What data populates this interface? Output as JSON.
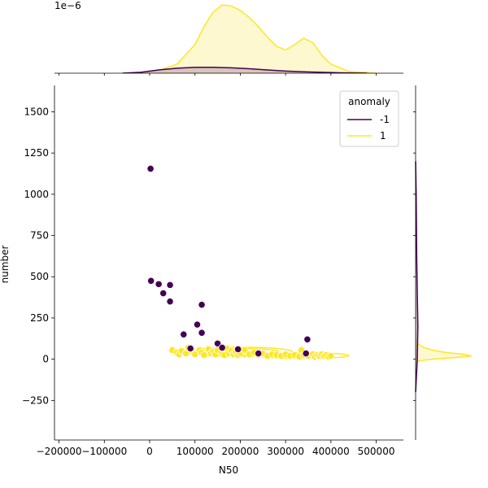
{
  "chart_data": {
    "type": "scatter",
    "subtype": "jointplot",
    "xlabel": "N50",
    "ylabel": "number",
    "offset_text": "1e−6",
    "xlim": [
      -210000,
      560000
    ],
    "ylim": [
      -490,
      1660
    ],
    "xticks": [
      -200000,
      -100000,
      0,
      100000,
      200000,
      300000,
      400000,
      500000
    ],
    "xtick_labels": [
      "−200000",
      "−100000",
      "0",
      "100000",
      "200000",
      "300000",
      "400000",
      "500000"
    ],
    "yticks": [
      -250,
      0,
      250,
      500,
      750,
      1000,
      1250,
      1500
    ],
    "ytick_labels": [
      "−250",
      "0",
      "250",
      "500",
      "750",
      "1000",
      "1250",
      "1500"
    ],
    "legend": {
      "title": "anomaly",
      "placement": "top-right",
      "entries": [
        {
          "label": "-1",
          "color": "#440154"
        },
        {
          "label": "1",
          "color": "#fde725"
        }
      ]
    },
    "series": [
      {
        "name": "-1",
        "color": "#440154",
        "points": [
          [
            2000,
            1155
          ],
          [
            3000,
            475
          ],
          [
            20000,
            455
          ],
          [
            30000,
            400
          ],
          [
            45000,
            450
          ],
          [
            45000,
            350
          ],
          [
            75000,
            150
          ],
          [
            90000,
            65
          ],
          [
            105000,
            210
          ],
          [
            115000,
            330
          ],
          [
            115000,
            160
          ],
          [
            150000,
            95
          ],
          [
            160000,
            70
          ],
          [
            195000,
            60
          ],
          [
            240000,
            35
          ],
          [
            345000,
            35
          ],
          [
            348000,
            120
          ]
        ]
      },
      {
        "name": "1",
        "color": "#fde725",
        "points": [
          [
            50000,
            55
          ],
          [
            60000,
            40
          ],
          [
            65000,
            30
          ],
          [
            70000,
            50
          ],
          [
            80000,
            35
          ],
          [
            85000,
            70
          ],
          [
            95000,
            45
          ],
          [
            100000,
            30
          ],
          [
            110000,
            55
          ],
          [
            115000,
            40
          ],
          [
            120000,
            25
          ],
          [
            130000,
            60
          ],
          [
            135000,
            35
          ],
          [
            140000,
            45
          ],
          [
            145000,
            30
          ],
          [
            150000,
            55
          ],
          [
            160000,
            40
          ],
          [
            165000,
            25
          ],
          [
            170000,
            65
          ],
          [
            175000,
            35
          ],
          [
            180000,
            50
          ],
          [
            185000,
            30
          ],
          [
            190000,
            45
          ],
          [
            195000,
            25
          ],
          [
            200000,
            35
          ],
          [
            210000,
            55
          ],
          [
            220000,
            30
          ],
          [
            230000,
            40
          ],
          [
            240000,
            25
          ],
          [
            250000,
            35
          ],
          [
            260000,
            20
          ],
          [
            270000,
            30
          ],
          [
            280000,
            25
          ],
          [
            290000,
            20
          ],
          [
            300000,
            30
          ],
          [
            310000,
            20
          ],
          [
            320000,
            25
          ],
          [
            330000,
            15
          ],
          [
            335000,
            55
          ],
          [
            340000,
            25
          ],
          [
            350000,
            20
          ],
          [
            360000,
            30
          ],
          [
            365000,
            15
          ],
          [
            370000,
            25
          ],
          [
            375000,
            20
          ],
          [
            380000,
            30
          ],
          [
            385000,
            20
          ],
          [
            390000,
            25
          ],
          [
            395000,
            15
          ],
          [
            400000,
            20
          ]
        ]
      }
    ],
    "kde_contours": [
      {
        "series": "1",
        "cx": 200000,
        "cy": 45,
        "rx": 115000,
        "ry": 28
      },
      {
        "series": "1",
        "cx": 195000,
        "cy": 45,
        "rx": 90000,
        "ry": 20
      },
      {
        "series": "1",
        "cx": 340000,
        "cy": 22,
        "rx": 100000,
        "ry": 18
      },
      {
        "series": "1",
        "cx": 345000,
        "cy": 22,
        "rx": 55000,
        "ry": 10
      },
      {
        "series": "1",
        "cx": 160000,
        "cy": 48,
        "rx": 45000,
        "ry": 12
      }
    ],
    "marginal_x": {
      "ylim": [
        0,
        3.9
      ],
      "series": [
        {
          "name": "1",
          "color": "#fde725",
          "fill": "#fdf5c1",
          "x": [
            -60000,
            -20000,
            20000,
            60000,
            100000,
            120000,
            140000,
            160000,
            180000,
            200000,
            220000,
            240000,
            260000,
            280000,
            300000,
            320000,
            340000,
            360000,
            380000,
            400000,
            440000,
            500000
          ],
          "y": [
            0.0,
            0.02,
            0.15,
            0.5,
            1.6,
            2.6,
            3.4,
            3.8,
            3.75,
            3.5,
            3.1,
            2.6,
            2.0,
            1.5,
            1.3,
            1.6,
            1.95,
            1.7,
            1.0,
            0.5,
            0.1,
            0.0
          ]
        },
        {
          "name": "-1",
          "color": "#440154",
          "fill": "#cbb4b2",
          "x": [
            -60000,
            -20000,
            20000,
            60000,
            100000,
            140000,
            180000,
            220000,
            260000,
            300000,
            340000,
            380000,
            420000,
            480000
          ],
          "y": [
            0.0,
            0.05,
            0.18,
            0.28,
            0.33,
            0.33,
            0.3,
            0.25,
            0.18,
            0.12,
            0.08,
            0.05,
            0.02,
            0.0
          ]
        }
      ]
    },
    "marginal_y": {
      "series": [
        {
          "name": "1",
          "color": "#fde725",
          "fill": "#fdf5c1",
          "y": [
            -30,
            -10,
            0,
            10,
            20,
            30,
            40,
            55,
            70,
            90,
            120
          ],
          "density": [
            0.0,
            0.05,
            0.3,
            0.7,
            1.0,
            0.85,
            0.55,
            0.3,
            0.15,
            0.05,
            0.0
          ]
        },
        {
          "name": "-1",
          "color": "#440154",
          "fill": "#cbb4b2",
          "y": [
            -200,
            0,
            200,
            400,
            600,
            800,
            1000,
            1200
          ],
          "density": [
            0.0,
            0.03,
            0.04,
            0.03,
            0.02,
            0.015,
            0.01,
            0.0
          ]
        }
      ]
    }
  }
}
